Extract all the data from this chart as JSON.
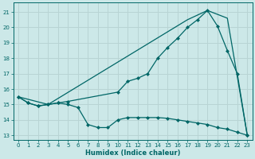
{
  "xlabel": "Humidex (Indice chaleur)",
  "bg_color": "#cce8e8",
  "grid_color": "#b8d4d4",
  "line_color": "#006666",
  "xlim": [
    -0.5,
    23.5
  ],
  "ylim": [
    12.7,
    21.6
  ],
  "yticks": [
    13,
    14,
    15,
    16,
    17,
    18,
    19,
    20,
    21
  ],
  "xticks": [
    0,
    1,
    2,
    3,
    4,
    5,
    6,
    7,
    8,
    9,
    10,
    11,
    12,
    13,
    14,
    15,
    16,
    17,
    18,
    19,
    20,
    21,
    22,
    23
  ],
  "line1_x": [
    0,
    1,
    2,
    3,
    4,
    5,
    6,
    7,
    8,
    9,
    10,
    11,
    12,
    13,
    14,
    15,
    16,
    17,
    18,
    19,
    20,
    21,
    22,
    23
  ],
  "line1_y": [
    15.5,
    15.1,
    14.9,
    15.0,
    15.1,
    15.0,
    14.8,
    13.7,
    13.5,
    13.5,
    14.0,
    14.15,
    14.15,
    14.15,
    14.15,
    14.1,
    14.0,
    13.9,
    13.8,
    13.7,
    13.5,
    13.4,
    13.2,
    13.0
  ],
  "line2_x": [
    0,
    1,
    2,
    3,
    4,
    5,
    10,
    11,
    12,
    13,
    14,
    15,
    16,
    17,
    18,
    19,
    20,
    21,
    22,
    23
  ],
  "line2_y": [
    15.5,
    15.1,
    14.9,
    15.0,
    15.1,
    15.2,
    15.8,
    16.5,
    16.7,
    17.0,
    18.0,
    18.7,
    19.3,
    20.0,
    20.5,
    21.1,
    20.1,
    18.5,
    17.0,
    13.0
  ],
  "line3_x": [
    0,
    3,
    17,
    19,
    21,
    23
  ],
  "line3_y": [
    15.5,
    15.0,
    20.5,
    21.1,
    20.6,
    13.0
  ]
}
